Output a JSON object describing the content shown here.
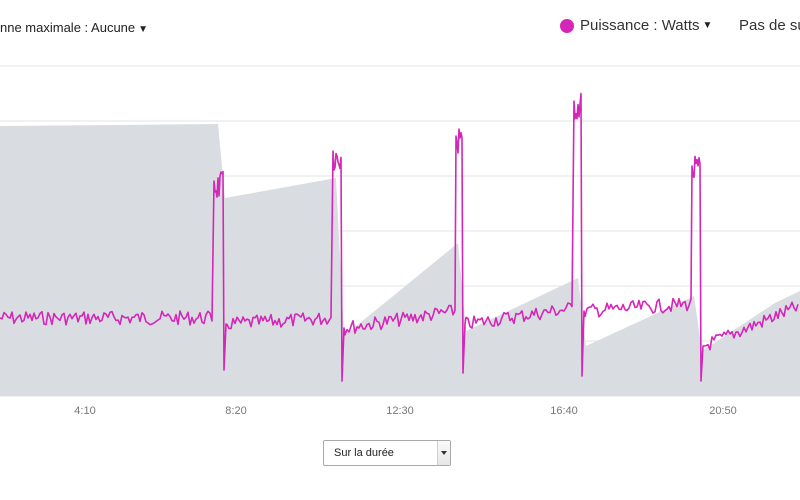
{
  "toolbar": {
    "moving_average_label": "nne maximale : Aucune",
    "power_label": "Puissance : Watts",
    "secondary_label": "Pas de su"
  },
  "colors": {
    "power": "#d426b8",
    "area": "#d9dde1",
    "grid": "#e3e3e3"
  },
  "range_select": {
    "selected": "Sur la durée"
  },
  "chart_data": {
    "type": "line",
    "x_ticks": [
      "4:10",
      "8:20",
      "12:30",
      "16:40",
      "20:50"
    ],
    "series": [
      {
        "name": "Puissance : Watts",
        "baseline_range": [
          130,
          175
        ],
        "interval_peaks": [
          265,
          290,
          300,
          315,
          255
        ]
      }
    ],
    "grid": true
  },
  "icons": {
    "power_dot": "circle",
    "dropdown": "caret-down-icon"
  }
}
